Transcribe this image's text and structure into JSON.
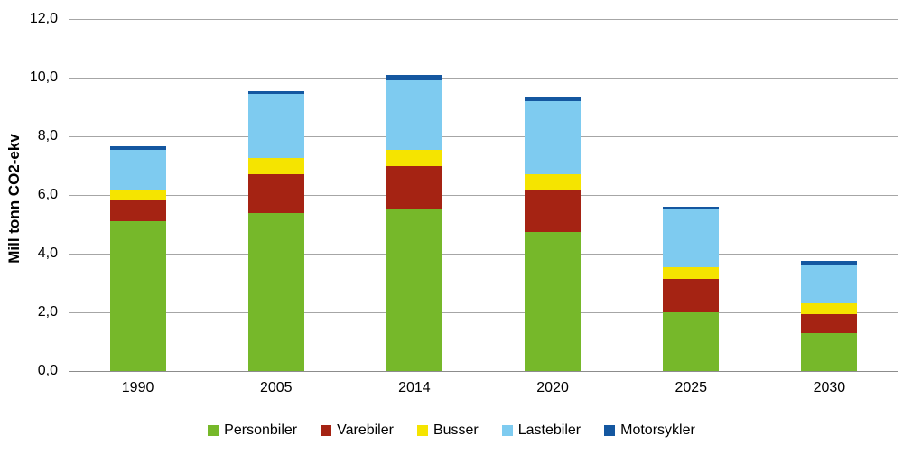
{
  "chart_data": {
    "type": "bar",
    "stacked": true,
    "title": "",
    "xlabel": "",
    "ylabel": "Mill tonn CO2-ekv",
    "unit": "Mill tonn CO2-ekv",
    "categories": [
      "1990",
      "2005",
      "2014",
      "2020",
      "2025",
      "2030"
    ],
    "series": [
      {
        "name": "Personbiler",
        "color": "#76b82a",
        "values": [
          5.1,
          5.4,
          5.5,
          4.75,
          2.0,
          1.3
        ]
      },
      {
        "name": "Varebiler",
        "color": "#a52313",
        "values": [
          0.75,
          1.3,
          1.5,
          1.45,
          1.15,
          0.65
        ]
      },
      {
        "name": "Busser",
        "color": "#f5e400",
        "values": [
          0.3,
          0.55,
          0.55,
          0.5,
          0.4,
          0.35
        ]
      },
      {
        "name": "Lastebiler",
        "color": "#7ecbf0",
        "values": [
          1.4,
          2.2,
          2.35,
          2.5,
          1.95,
          1.3
        ]
      },
      {
        "name": "Motorsykler",
        "color": "#1457a0",
        "values": [
          0.1,
          0.1,
          0.2,
          0.15,
          0.1,
          0.15
        ]
      }
    ],
    "totals": [
      7.65,
      9.55,
      10.1,
      9.35,
      5.6,
      3.75
    ],
    "ylim": [
      0,
      12
    ],
    "y_ticks": [
      {
        "value": 0,
        "label": "0,0"
      },
      {
        "value": 2,
        "label": "2,0"
      },
      {
        "value": 4,
        "label": "4,0"
      },
      {
        "value": 6,
        "label": "6,0"
      },
      {
        "value": 8,
        "label": "8,0"
      },
      {
        "value": 10,
        "label": "10,0"
      },
      {
        "value": 12,
        "label": "12,0"
      }
    ],
    "grid": true,
    "legend_position": "bottom"
  },
  "colors": {
    "gridline": "#a6a6a6",
    "axis": "#8c8c8c",
    "text": "#000000",
    "background": "#ffffff"
  }
}
